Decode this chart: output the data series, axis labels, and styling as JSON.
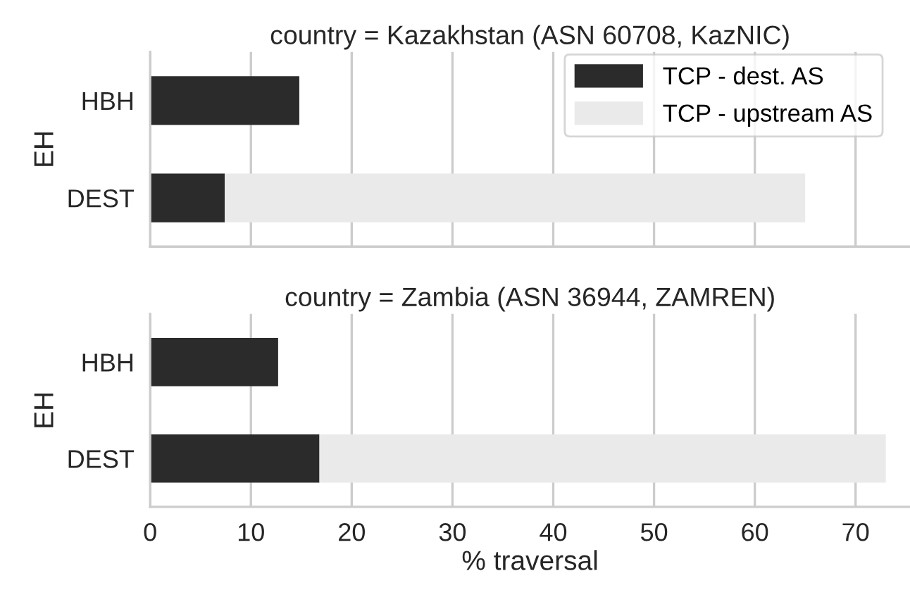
{
  "chart_data": [
    {
      "type": "bar",
      "orientation": "horizontal",
      "stacked": true,
      "title": "country = Kazakhstan (ASN 60708, KazNIC)",
      "ylabel": "EH",
      "categories": [
        "HBH",
        "DEST"
      ],
      "series": [
        {
          "name": "TCP - dest. AS",
          "color": "#2b2b2b",
          "values": [
            14.8,
            7.4
          ]
        },
        {
          "name": "TCP - upstream AS",
          "color": "#eaeaea",
          "values": [
            null,
            57.6
          ]
        }
      ],
      "xlim": [
        0,
        75.4
      ],
      "xticks": [
        0,
        10,
        20,
        30,
        40,
        50,
        60,
        70
      ],
      "grid": "x",
      "legend": "top right",
      "tick_labels": "y"
    },
    {
      "type": "bar",
      "orientation": "horizontal",
      "stacked": true,
      "title": "country = Zambia (ASN 36944, ZAMREN)",
      "xlabel": "% traversal",
      "ylabel": "EH",
      "categories": [
        "HBH",
        "DEST"
      ],
      "series": [
        {
          "color": "#2b2b2b",
          "values": [
            12.7,
            16.8
          ]
        },
        {
          "color": "#eaeaea",
          "values": [
            null,
            56.2
          ]
        }
      ],
      "xlim": [
        0,
        75.4
      ],
      "xticks": [
        0,
        10,
        20,
        30,
        40,
        50,
        60,
        70
      ],
      "grid": "x"
    }
  ]
}
